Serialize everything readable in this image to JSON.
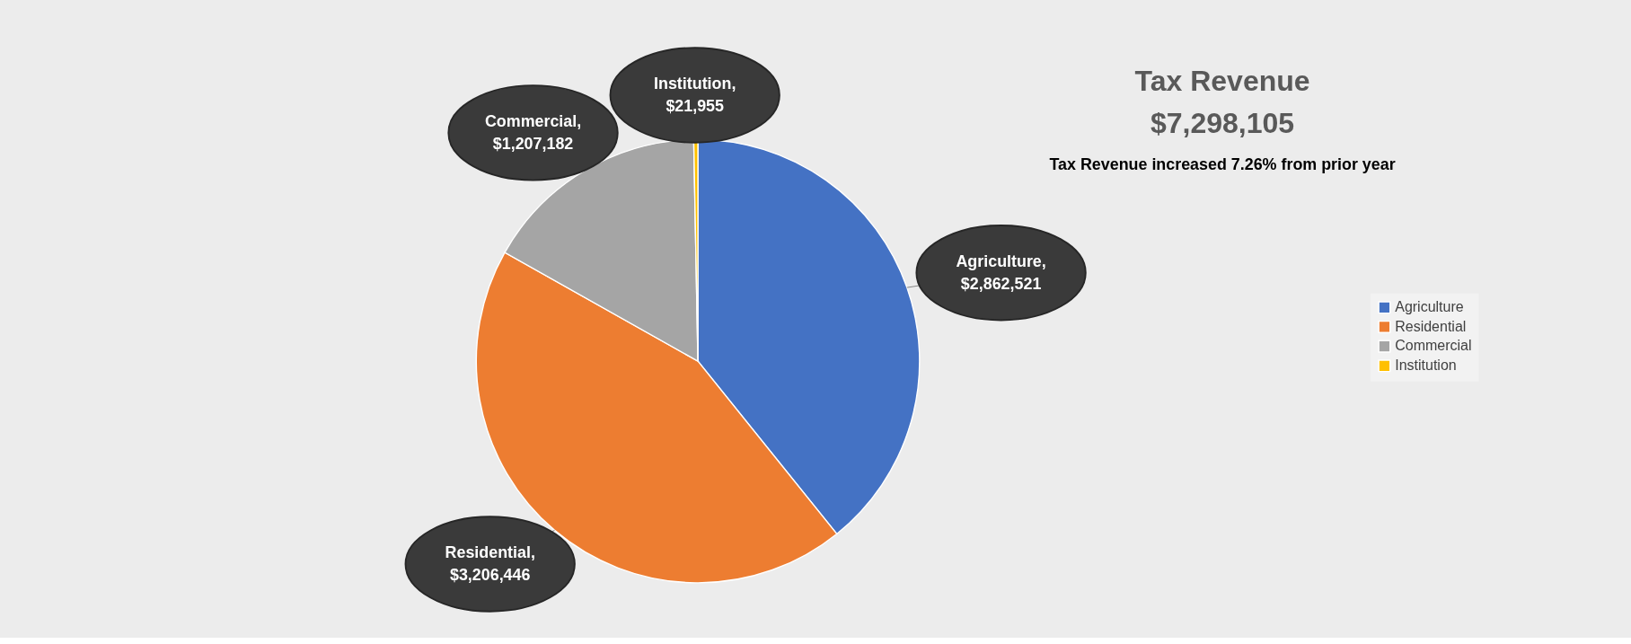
{
  "chart_data": {
    "type": "pie",
    "title": "Tax Revenue",
    "subtitle": "$7,298,105",
    "annotations": [
      "Tax Revenue increased 7.26% from prior year"
    ],
    "categories": [
      "Agriculture",
      "Residential",
      "Commercial",
      "Institution"
    ],
    "values": [
      2862521,
      3206446,
      1207182,
      21955
    ],
    "colors": [
      "#4472c4",
      "#ed7d31",
      "#a5a5a5",
      "#ffc000"
    ],
    "value_labels": [
      "Agriculture, $2,862,521",
      "Residential, $3,206,446",
      "Commercial, $1,207,182",
      "Institution, $21,955"
    ],
    "legend": "right"
  }
}
